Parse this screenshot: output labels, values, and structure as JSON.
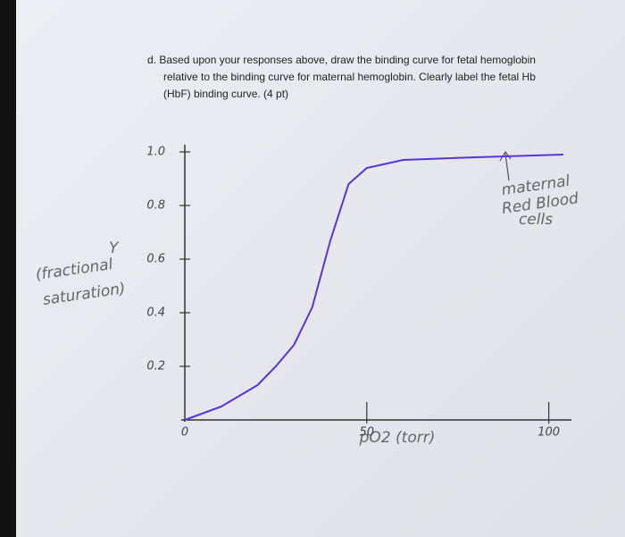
{
  "chart_data": {
    "type": "line",
    "question_lines": [
      "d.  Based upon your responses above, draw the binding curve for fetal hemoglobin",
      "relative to the binding curve for maternal hemoglobin. Clearly label the fetal Hb",
      "(HbF) binding curve. (4 pt)"
    ],
    "ylabel_lines": [
      "Y",
      "(fractional",
      "saturation)"
    ],
    "xlabel": "pO2 (torr)",
    "annotation_lines": [
      "maternal",
      "Red Blood",
      "cells"
    ],
    "x": [
      0,
      10,
      20,
      25,
      30,
      35,
      40,
      45,
      50,
      60,
      80,
      104
    ],
    "series": [
      {
        "color": "#5b34d6",
        "values": [
          0,
          0.05,
          0.13,
          0.2,
          0.28,
          0.42,
          0.67,
          0.88,
          0.94,
          0.97,
          0.98,
          0.99
        ]
      }
    ],
    "xlim": [
      0,
      105
    ],
    "ylim": [
      0,
      1.05
    ],
    "xticks": [
      0,
      50,
      100
    ],
    "yticks": [
      0.2,
      0.4,
      0.6,
      0.8,
      {
        "value": 1.0,
        "label": "1.0"
      }
    ]
  }
}
